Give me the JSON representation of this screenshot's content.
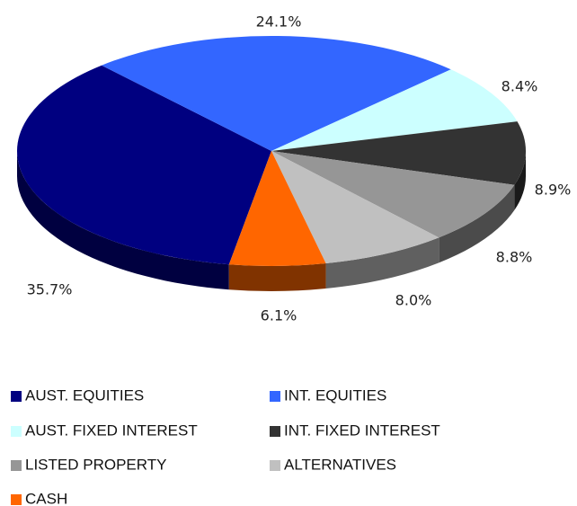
{
  "chart_data": {
    "type": "pie3d",
    "categories": [
      "AUST. EQUITIES",
      "INT. EQUITIES",
      "AUST. FIXED INTEREST",
      "INT. FIXED INTEREST",
      "LISTED PROPERTY",
      "ALTERNATIVES",
      "CASH"
    ],
    "values": [
      35.7,
      24.1,
      8.4,
      8.9,
      8.8,
      8.0,
      6.1
    ],
    "value_labels": [
      "35.7%",
      "24.1%",
      "8.4%",
      "8.9%",
      "8.8%",
      "8.0%",
      "6.1%"
    ],
    "colors": [
      "#000080",
      "#3366ff",
      "#ccffff",
      "#333333",
      "#969696",
      "#c0c0c0",
      "#ff6600"
    ],
    "legend": "bottom"
  }
}
